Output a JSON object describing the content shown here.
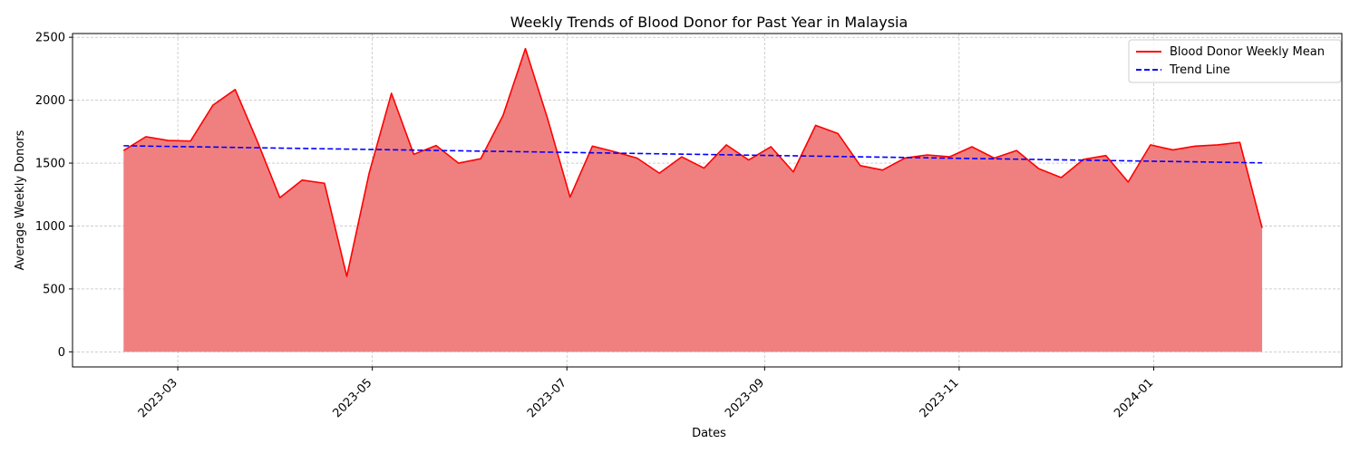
{
  "chart_data": {
    "type": "area",
    "title": "Weekly Trends of Blood Donor for Past Year in Malaysia",
    "xlabel": "Dates",
    "ylabel": "Average Weekly Donors",
    "x_ticks": [
      "2023-03",
      "2023-05",
      "2023-07",
      "2023-09",
      "2023-11",
      "2024-01"
    ],
    "x_tick_dates": [
      "2023-03-01",
      "2023-05-01",
      "2023-07-01",
      "2023-09-01",
      "2023-11-01",
      "2024-01-01"
    ],
    "y_ticks": [
      0,
      500,
      1000,
      1500,
      2000,
      2500
    ],
    "xlim": [
      "2023-01-27",
      "2024-02-29"
    ],
    "ylim": [
      -120,
      2530
    ],
    "grid": true,
    "legend_position": "top-right",
    "series": [
      {
        "name": "Blood Donor Weekly Mean",
        "style": "solid",
        "color": "#ff0000",
        "fill_color": "#f08080",
        "x": [
          "2023-02-12",
          "2023-02-19",
          "2023-02-26",
          "2023-03-05",
          "2023-03-12",
          "2023-03-19",
          "2023-03-26",
          "2023-04-02",
          "2023-04-09",
          "2023-04-16",
          "2023-04-23",
          "2023-04-30",
          "2023-05-07",
          "2023-05-14",
          "2023-05-21",
          "2023-05-28",
          "2023-06-04",
          "2023-06-11",
          "2023-06-18",
          "2023-06-25",
          "2023-07-02",
          "2023-07-09",
          "2023-07-16",
          "2023-07-23",
          "2023-07-30",
          "2023-08-06",
          "2023-08-13",
          "2023-08-20",
          "2023-08-27",
          "2023-09-03",
          "2023-09-10",
          "2023-09-17",
          "2023-09-24",
          "2023-10-01",
          "2023-10-08",
          "2023-10-15",
          "2023-10-22",
          "2023-10-29",
          "2023-11-05",
          "2023-11-12",
          "2023-11-19",
          "2023-11-26",
          "2023-12-03",
          "2023-12-10",
          "2023-12-17",
          "2023-12-24",
          "2023-12-31",
          "2024-01-07",
          "2024-01-14",
          "2024-01-21",
          "2024-01-28",
          "2024-02-04"
        ],
        "values": [
          1600,
          1710,
          1680,
          1675,
          1960,
          2085,
          1670,
          1225,
          1365,
          1340,
          600,
          1420,
          2055,
          1570,
          1640,
          1500,
          1535,
          1880,
          2410,
          1850,
          1230,
          1635,
          1590,
          1540,
          1420,
          1550,
          1460,
          1645,
          1525,
          1630,
          1430,
          1800,
          1735,
          1480,
          1445,
          1540,
          1565,
          1550,
          1630,
          1540,
          1600,
          1455,
          1385,
          1530,
          1560,
          1350,
          1645,
          1605,
          1635,
          1645,
          1665,
          985
        ]
      },
      {
        "name": "Trend Line",
        "style": "dashed",
        "color": "#0000ff",
        "x": [
          "2023-02-12",
          "2024-02-04"
        ],
        "values": [
          1638,
          1502
        ]
      }
    ]
  }
}
